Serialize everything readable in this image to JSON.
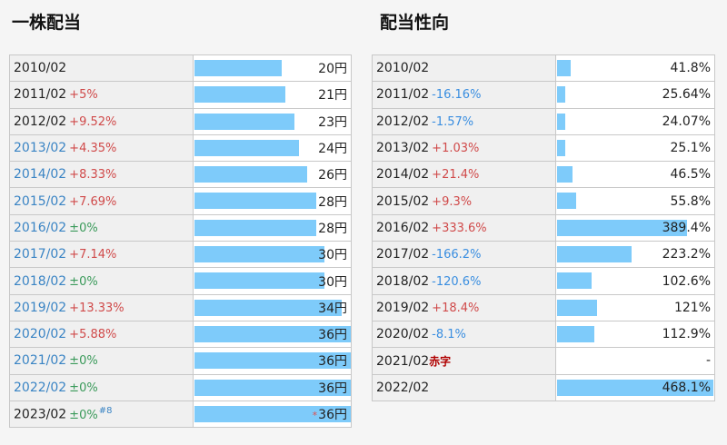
{
  "headings": {
    "left": "一株配当",
    "right": "配当性向"
  },
  "chart_data": [
    {
      "type": "table",
      "title": "一株配当",
      "unit": "円",
      "xmax": 36,
      "rows": [
        {
          "year": "2010/02",
          "change": "",
          "dir": "",
          "value": 20,
          "value_text": "20円",
          "year_color": "black"
        },
        {
          "year": "2011/02",
          "change": "+5%",
          "dir": "up",
          "value": 21,
          "value_text": "21円",
          "year_color": "black"
        },
        {
          "year": "2012/02",
          "change": "+9.52%",
          "dir": "up",
          "value": 23,
          "value_text": "23円",
          "year_color": "black"
        },
        {
          "year": "2013/02",
          "change": "+4.35%",
          "dir": "up",
          "value": 24,
          "value_text": "24円",
          "year_color": "blue"
        },
        {
          "year": "2014/02",
          "change": "+8.33%",
          "dir": "up",
          "value": 26,
          "value_text": "26円",
          "year_color": "blue"
        },
        {
          "year": "2015/02",
          "change": "+7.69%",
          "dir": "up",
          "value": 28,
          "value_text": "28円",
          "year_color": "blue"
        },
        {
          "year": "2016/02",
          "change": "±0%",
          "dir": "flat",
          "value": 28,
          "value_text": "28円",
          "year_color": "blue"
        },
        {
          "year": "2017/02",
          "change": "+7.14%",
          "dir": "up",
          "value": 30,
          "value_text": "30円",
          "year_color": "blue"
        },
        {
          "year": "2018/02",
          "change": "±0%",
          "dir": "flat",
          "value": 30,
          "value_text": "30円",
          "year_color": "blue"
        },
        {
          "year": "2019/02",
          "change": "+13.33%",
          "dir": "up",
          "value": 34,
          "value_text": "34円",
          "year_color": "blue"
        },
        {
          "year": "2020/02",
          "change": "+5.88%",
          "dir": "up",
          "value": 36,
          "value_text": "36円",
          "year_color": "blue"
        },
        {
          "year": "2021/02",
          "change": "±0%",
          "dir": "flat",
          "value": 36,
          "value_text": "36円",
          "year_color": "blue"
        },
        {
          "year": "2022/02",
          "change": "±0%",
          "dir": "flat",
          "value": 36,
          "value_text": "36円",
          "year_color": "blue"
        },
        {
          "year": "2023/02",
          "change": "±0%",
          "dir": "flat",
          "value": 36,
          "value_text": "36円",
          "year_color": "black",
          "note": "#8",
          "star": "*"
        }
      ]
    },
    {
      "type": "table",
      "title": "配当性向",
      "unit": "%",
      "xmax": 468.1,
      "rows": [
        {
          "year": "2010/02",
          "change": "",
          "dir": "",
          "value": 41.8,
          "value_text": "41.8%"
        },
        {
          "year": "2011/02",
          "change": "-16.16%",
          "dir": "down",
          "value": 25.64,
          "value_text": "25.64%"
        },
        {
          "year": "2012/02",
          "change": "-1.57%",
          "dir": "down",
          "value": 24.07,
          "value_text": "24.07%"
        },
        {
          "year": "2013/02",
          "change": "+1.03%",
          "dir": "up",
          "value": 25.1,
          "value_text": "25.1%"
        },
        {
          "year": "2014/02",
          "change": "+21.4%",
          "dir": "up",
          "value": 46.5,
          "value_text": "46.5%"
        },
        {
          "year": "2015/02",
          "change": "+9.3%",
          "dir": "up",
          "value": 55.8,
          "value_text": "55.8%"
        },
        {
          "year": "2016/02",
          "change": "+333.6%",
          "dir": "up",
          "value": 389.4,
          "value_text": "389.4%"
        },
        {
          "year": "2017/02",
          "change": "-166.2%",
          "dir": "down",
          "value": 223.2,
          "value_text": "223.2%"
        },
        {
          "year": "2018/02",
          "change": "-120.6%",
          "dir": "down",
          "value": 102.6,
          "value_text": "102.6%"
        },
        {
          "year": "2019/02",
          "change": "+18.4%",
          "dir": "up",
          "value": 121,
          "value_text": "121%"
        },
        {
          "year": "2020/02",
          "change": "-8.1%",
          "dir": "down",
          "value": 112.9,
          "value_text": "112.9%"
        },
        {
          "year": "2021/02",
          "change": "赤字",
          "dir": "deficit",
          "value": null,
          "value_text": "-"
        },
        {
          "year": "2022/02",
          "change": "",
          "dir": "",
          "value": 468.1,
          "value_text": "468.1%"
        }
      ]
    }
  ]
}
